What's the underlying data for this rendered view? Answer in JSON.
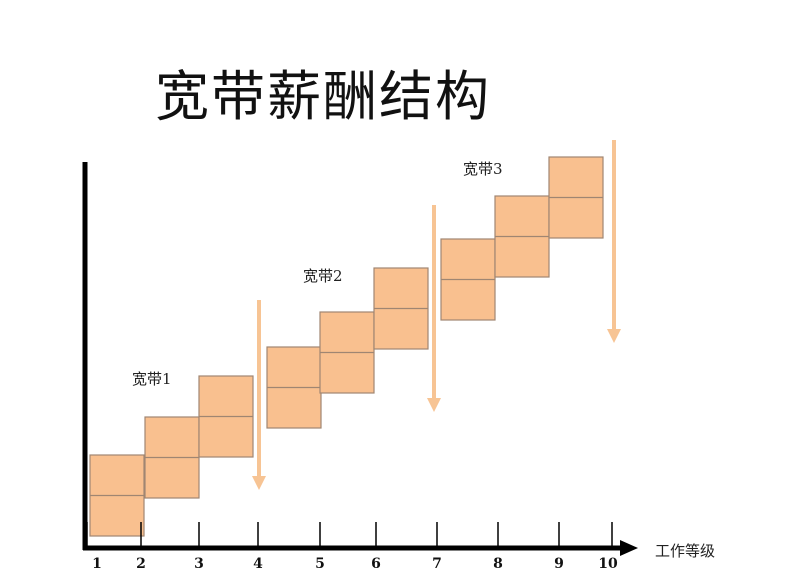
{
  "title": "宽带薪酬结构",
  "bands": [
    {
      "label": "宽带1"
    },
    {
      "label": "宽带2"
    },
    {
      "label": "宽带3"
    }
  ],
  "x_axis": {
    "label": "工作等级",
    "ticks": [
      "1",
      "2",
      "3",
      "4",
      "5",
      "6",
      "7",
      "8",
      "9",
      "10"
    ]
  },
  "colors": {
    "box_fill": "#f9c08f",
    "box_border": "#a08672",
    "arrow": "#f7c494",
    "axis": "#000000"
  }
}
